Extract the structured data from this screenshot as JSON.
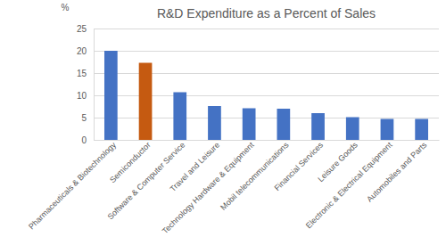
{
  "chart_data": {
    "type": "bar",
    "title": "R&D Expenditure as a Percent of Sales",
    "y_label": "%",
    "categories": [
      "Pharmaceuticals & Biotechnology",
      "Semiconductor",
      "Software & Computer Service",
      "Travel and Leisure",
      "Technology Hardware & Equipment",
      "Mobil telecommunications",
      "Financial Services",
      "Leisure Goods",
      "Electronic & Electrical Equipment",
      "Automobiles and Parts"
    ],
    "values": [
      20,
      17.3,
      10.7,
      7.6,
      7.1,
      7.0,
      6.0,
      5.1,
      4.7,
      4.7
    ],
    "colors": [
      "#4472c4",
      "#c55a11",
      "#4472c4",
      "#4472c4",
      "#4472c4",
      "#4472c4",
      "#4472c4",
      "#4472c4",
      "#4472c4",
      "#4472c4"
    ],
    "ylim": [
      0,
      25
    ],
    "yticks": [
      0,
      5,
      10,
      15,
      20,
      25
    ],
    "grid": true
  }
}
